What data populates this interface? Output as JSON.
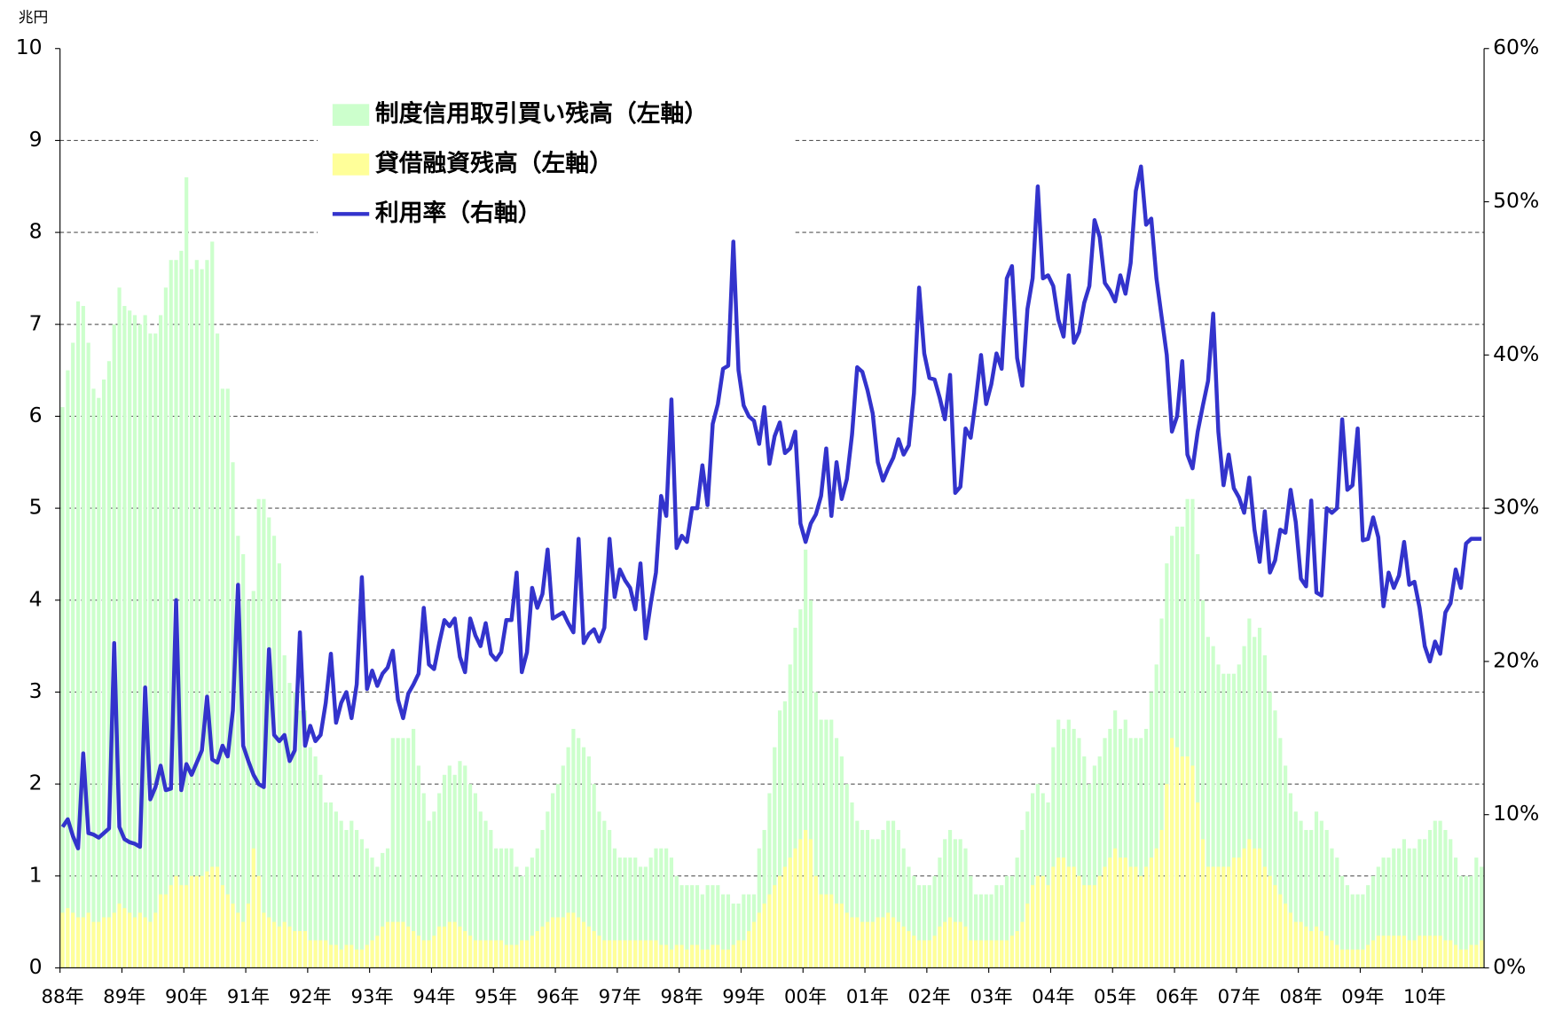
{
  "chart_data": {
    "type": "bar",
    "unit_label": "兆円",
    "categories": [
      "88年",
      null,
      null,
      null,
      null,
      null,
      null,
      null,
      null,
      null,
      null,
      null,
      "89年",
      null,
      null,
      null,
      null,
      null,
      null,
      null,
      null,
      null,
      null,
      null,
      "90年",
      null,
      null,
      null,
      null,
      null,
      null,
      null,
      null,
      null,
      null,
      null,
      "91年",
      null,
      null,
      null,
      null,
      null,
      null,
      null,
      null,
      null,
      null,
      null,
      "92年",
      null,
      null,
      null,
      null,
      null,
      null,
      null,
      null,
      null,
      null,
      null,
      "93年",
      null,
      null,
      null,
      null,
      null,
      null,
      null,
      null,
      null,
      null,
      null,
      "94年",
      null,
      null,
      null,
      null,
      null,
      null,
      null,
      null,
      null,
      null,
      null,
      "95年",
      null,
      null,
      null,
      null,
      null,
      null,
      null,
      null,
      null,
      null,
      null,
      "96年",
      null,
      null,
      null,
      null,
      null,
      null,
      null,
      null,
      null,
      null,
      null,
      "97年",
      null,
      null,
      null,
      null,
      null,
      null,
      null,
      null,
      null,
      null,
      null,
      "98年",
      null,
      null,
      null,
      null,
      null,
      null,
      null,
      null,
      null,
      null,
      null,
      "99年",
      null,
      null,
      null,
      null,
      null,
      null,
      null,
      null,
      null,
      null,
      null,
      "00年",
      null,
      null,
      null,
      null,
      null,
      null,
      null,
      null,
      null,
      null,
      null,
      "01年",
      null,
      null,
      null,
      null,
      null,
      null,
      null,
      null,
      null,
      null,
      null,
      "02年",
      null,
      null,
      null,
      null,
      null,
      null,
      null,
      null,
      null,
      null,
      null,
      "03年",
      null,
      null,
      null,
      null,
      null,
      null,
      null,
      null,
      null,
      null,
      null,
      "04年",
      null,
      null,
      null,
      null,
      null,
      null,
      null,
      null,
      null,
      null,
      null,
      "05年",
      null,
      null,
      null,
      null,
      null,
      null,
      null,
      null,
      null,
      null,
      null,
      "06年",
      null,
      null,
      null,
      null,
      null,
      null,
      null,
      null,
      null,
      null,
      null,
      "07年",
      null,
      null,
      null,
      null,
      null,
      null,
      null,
      null,
      null,
      null,
      null,
      "08年",
      null,
      null,
      null,
      null,
      null,
      null,
      null,
      null,
      null,
      null,
      null,
      "09年",
      null,
      null,
      null,
      null,
      null,
      null,
      null,
      null,
      null,
      null,
      null,
      "10年",
      null,
      null,
      null,
      null,
      null,
      null,
      null,
      null,
      null,
      null,
      null
    ],
    "series": [
      {
        "name": "制度信用取引買い残高（左軸）",
        "type": "bar",
        "color": "#ccffcc",
        "values": [
          6.1,
          6.5,
          6.8,
          7.25,
          7.2,
          6.8,
          6.3,
          6.2,
          6.4,
          6.6,
          7.0,
          7.4,
          7.2,
          7.15,
          7.1,
          7.0,
          7.1,
          6.9,
          6.9,
          7.1,
          7.4,
          7.7,
          7.7,
          7.8,
          8.6,
          7.6,
          7.7,
          7.6,
          7.7,
          7.9,
          6.9,
          6.3,
          6.3,
          5.5,
          4.7,
          4.5,
          4.0,
          4.1,
          5.1,
          5.1,
          4.9,
          4.7,
          4.4,
          3.4,
          3.1,
          3.0,
          2.8,
          2.8,
          2.4,
          2.3,
          2.1,
          1.8,
          1.8,
          1.7,
          1.6,
          1.5,
          1.6,
          1.5,
          1.4,
          1.3,
          1.2,
          1.1,
          1.25,
          1.3,
          2.5,
          2.5,
          2.5,
          2.5,
          2.6,
          2.2,
          1.9,
          1.6,
          1.7,
          1.9,
          2.1,
          2.2,
          2.1,
          2.25,
          2.2,
          2.0,
          1.9,
          1.7,
          1.6,
          1.5,
          1.3,
          1.3,
          1.3,
          1.3,
          1.1,
          1.0,
          1.1,
          1.2,
          1.3,
          1.5,
          1.7,
          1.9,
          2.0,
          2.2,
          2.4,
          2.6,
          2.5,
          2.4,
          2.3,
          2.0,
          1.7,
          1.6,
          1.5,
          1.3,
          1.2,
          1.2,
          1.2,
          1.2,
          1.1,
          1.1,
          1.2,
          1.3,
          1.3,
          1.3,
          1.2,
          1.0,
          0.9,
          0.9,
          0.9,
          0.9,
          0.8,
          0.9,
          0.9,
          0.9,
          0.8,
          0.8,
          0.7,
          0.7,
          0.8,
          0.8,
          0.8,
          1.3,
          1.5,
          1.9,
          2.4,
          2.8,
          2.9,
          3.3,
          3.7,
          3.9,
          4.55,
          4.0,
          3.0,
          2.7,
          2.7,
          2.7,
          2.5,
          2.3,
          2.0,
          1.8,
          1.6,
          1.5,
          1.5,
          1.4,
          1.4,
          1.5,
          1.6,
          1.6,
          1.5,
          1.3,
          1.1,
          1.0,
          0.9,
          0.9,
          0.9,
          1.0,
          1.2,
          1.4,
          1.5,
          1.4,
          1.4,
          1.3,
          1.0,
          0.8,
          0.8,
          0.8,
          0.8,
          0.9,
          0.9,
          1.0,
          1.0,
          1.2,
          1.5,
          1.7,
          1.9,
          2.0,
          1.9,
          1.8,
          2.4,
          2.7,
          2.6,
          2.7,
          2.6,
          2.5,
          2.3,
          2.0,
          2.2,
          2.3,
          2.5,
          2.6,
          2.8,
          2.6,
          2.7,
          2.5,
          2.5,
          2.5,
          2.6,
          3.0,
          3.3,
          3.8,
          4.4,
          4.7,
          4.8,
          4.8,
          5.1,
          5.1,
          4.5,
          4.0,
          3.6,
          3.5,
          3.3,
          3.2,
          3.2,
          3.2,
          3.3,
          3.5,
          3.8,
          3.6,
          3.7,
          3.4,
          3.0,
          2.8,
          2.5,
          2.2,
          1.9,
          1.7,
          1.6,
          1.5,
          1.5,
          1.7,
          1.6,
          1.5,
          1.3,
          1.2,
          1.0,
          0.9,
          0.8,
          0.8,
          0.8,
          0.9,
          1.0,
          1.1,
          1.2,
          1.2,
          1.3,
          1.3,
          1.4,
          1.3,
          1.3,
          1.4,
          1.4,
          1.5,
          1.6,
          1.6,
          1.5,
          1.4,
          1.2,
          1.0,
          1.0,
          1.0,
          1.2,
          1.1
        ]
      },
      {
        "name": "貸借融資残高（左軸）",
        "type": "bar",
        "color": "#ffff99",
        "values": [
          0.6,
          0.65,
          0.6,
          0.55,
          0.55,
          0.6,
          0.5,
          0.5,
          0.55,
          0.55,
          0.6,
          0.7,
          0.65,
          0.6,
          0.55,
          0.6,
          0.55,
          0.5,
          0.6,
          0.8,
          0.8,
          0.9,
          1.0,
          0.9,
          0.9,
          1.0,
          1.0,
          1.0,
          1.05,
          1.1,
          1.1,
          0.9,
          0.8,
          0.7,
          0.6,
          0.5,
          0.7,
          1.3,
          1.0,
          0.6,
          0.55,
          0.5,
          0.45,
          0.5,
          0.45,
          0.4,
          0.4,
          0.4,
          0.3,
          0.3,
          0.3,
          0.3,
          0.25,
          0.25,
          0.2,
          0.25,
          0.25,
          0.2,
          0.2,
          0.25,
          0.3,
          0.35,
          0.45,
          0.5,
          0.5,
          0.5,
          0.5,
          0.45,
          0.4,
          0.35,
          0.3,
          0.3,
          0.35,
          0.45,
          0.45,
          0.5,
          0.5,
          0.45,
          0.4,
          0.35,
          0.3,
          0.3,
          0.3,
          0.3,
          0.3,
          0.3,
          0.25,
          0.25,
          0.25,
          0.3,
          0.3,
          0.35,
          0.4,
          0.45,
          0.5,
          0.55,
          0.55,
          0.55,
          0.6,
          0.6,
          0.55,
          0.5,
          0.45,
          0.4,
          0.35,
          0.3,
          0.3,
          0.3,
          0.3,
          0.3,
          0.3,
          0.3,
          0.3,
          0.3,
          0.3,
          0.3,
          0.25,
          0.25,
          0.2,
          0.25,
          0.25,
          0.2,
          0.25,
          0.25,
          0.2,
          0.2,
          0.25,
          0.25,
          0.2,
          0.2,
          0.25,
          0.3,
          0.3,
          0.4,
          0.5,
          0.6,
          0.7,
          0.8,
          0.9,
          1.0,
          1.1,
          1.2,
          1.3,
          1.4,
          1.5,
          1.4,
          1.0,
          0.8,
          0.8,
          0.8,
          0.7,
          0.7,
          0.6,
          0.55,
          0.55,
          0.5,
          0.5,
          0.5,
          0.55,
          0.55,
          0.6,
          0.55,
          0.5,
          0.45,
          0.4,
          0.35,
          0.3,
          0.3,
          0.3,
          0.35,
          0.45,
          0.5,
          0.55,
          0.5,
          0.5,
          0.45,
          0.3,
          0.3,
          0.3,
          0.3,
          0.3,
          0.3,
          0.3,
          0.3,
          0.35,
          0.4,
          0.5,
          0.7,
          0.9,
          1.0,
          1.0,
          0.9,
          1.1,
          1.2,
          1.2,
          1.1,
          1.1,
          1.0,
          0.9,
          0.9,
          0.9,
          1.0,
          1.1,
          1.2,
          1.3,
          1.2,
          1.2,
          1.1,
          1.1,
          1.0,
          1.1,
          1.2,
          1.3,
          1.5,
          2.0,
          2.5,
          2.4,
          2.3,
          2.3,
          2.2,
          1.8,
          1.4,
          1.1,
          1.1,
          1.1,
          1.1,
          1.1,
          1.2,
          1.2,
          1.3,
          1.4,
          1.3,
          1.3,
          1.1,
          1.0,
          0.9,
          0.8,
          0.7,
          0.6,
          0.5,
          0.5,
          0.45,
          0.4,
          0.45,
          0.4,
          0.35,
          0.3,
          0.25,
          0.2,
          0.2,
          0.2,
          0.2,
          0.2,
          0.25,
          0.3,
          0.35,
          0.35,
          0.35,
          0.35,
          0.35,
          0.35,
          0.3,
          0.3,
          0.35,
          0.35,
          0.35,
          0.35,
          0.35,
          0.3,
          0.3,
          0.25,
          0.2,
          0.2,
          0.25,
          0.25,
          0.3
        ]
      },
      {
        "name": "利用率（右軸）",
        "type": "line",
        "axis": "y2",
        "color": "#3333cc",
        "values": [
          9.2,
          9.7,
          8.6,
          7.8,
          14.0,
          8.8,
          8.7,
          8.5,
          8.8,
          9.1,
          21.2,
          9.2,
          8.4,
          8.2,
          8.1,
          7.9,
          18.3,
          11.0,
          11.8,
          13.2,
          11.6,
          11.7,
          24.0,
          11.6,
          13.3,
          12.6,
          13.4,
          14.2,
          17.7,
          13.6,
          13.4,
          14.5,
          13.8,
          16.8,
          25.0,
          14.5,
          13.5,
          12.6,
          12.0,
          11.8,
          20.8,
          15.2,
          14.8,
          15.2,
          13.5,
          14.2,
          21.9,
          14.5,
          15.8,
          14.8,
          15.2,
          17.3,
          20.5,
          16.0,
          17.3,
          18.0,
          16.3,
          18.5,
          25.5,
          18.2,
          19.4,
          18.4,
          19.2,
          19.6,
          20.7,
          17.5,
          16.3,
          17.9,
          18.5,
          19.2,
          23.5,
          19.8,
          19.5,
          21.2,
          22.7,
          22.3,
          22.8,
          20.3,
          19.3,
          22.8,
          21.7,
          21.0,
          22.5,
          20.5,
          20.1,
          20.6,
          22.7,
          22.7,
          25.8,
          19.3,
          20.6,
          24.8,
          23.5,
          24.4,
          27.3,
          22.8,
          23.0,
          23.2,
          22.5,
          21.9,
          28.0,
          21.2,
          21.8,
          22.1,
          21.3,
          22.2,
          28.0,
          24.2,
          26.0,
          25.3,
          24.8,
          23.4,
          26.4,
          21.5,
          23.8,
          25.8,
          30.8,
          29.5,
          37.1,
          27.4,
          28.2,
          27.8,
          30.0,
          30.0,
          32.8,
          30.2,
          35.5,
          36.8,
          39.1,
          39.3,
          47.4,
          39.0,
          36.7,
          36.0,
          35.7,
          34.2,
          36.6,
          32.9,
          34.7,
          35.6,
          33.6,
          33.9,
          35.0,
          29.0,
          27.8,
          29.0,
          29.6,
          30.8,
          33.9,
          29.5,
          33.0,
          30.6,
          31.9,
          34.8,
          39.2,
          38.9,
          37.7,
          36.2,
          33.0,
          31.8,
          32.6,
          33.3,
          34.5,
          33.5,
          34.1,
          37.5,
          44.4,
          40.1,
          38.5,
          38.4,
          37.2,
          35.8,
          38.7,
          31.0,
          31.4,
          35.2,
          34.6,
          37.1,
          40.0,
          36.8,
          38.1,
          40.1,
          39.1,
          45.0,
          45.8,
          39.8,
          38.0,
          43.0,
          45.0,
          51.0,
          45.0,
          45.2,
          44.5,
          42.3,
          41.2,
          45.2,
          40.8,
          41.5,
          43.4,
          44.5,
          48.8,
          47.7,
          44.7,
          44.2,
          43.5,
          45.2,
          44.0,
          46.0,
          50.7,
          52.3,
          48.5,
          48.9,
          45.0,
          42.5,
          40.0,
          35.0,
          36.0,
          39.6,
          33.5,
          32.6,
          35.0,
          36.7,
          38.3,
          42.7,
          35.0,
          31.5,
          33.5,
          31.3,
          30.7,
          29.7,
          32.0,
          28.6,
          26.5,
          29.8,
          25.8,
          26.6,
          28.6,
          28.4,
          31.2,
          29.1,
          25.4,
          24.9,
          30.5,
          24.5,
          24.3,
          30.0,
          29.7,
          30.0,
          35.8,
          31.2,
          31.5,
          35.2,
          27.9,
          28.0,
          29.4,
          28.1,
          23.6,
          25.8,
          24.8,
          25.6,
          27.8,
          25.0,
          25.2,
          23.5,
          21.0,
          20.0,
          21.3,
          20.5,
          23.2,
          23.8,
          26.0,
          24.8,
          27.7,
          28.0,
          28.0,
          28.0
        ]
      }
    ],
    "ylim": [
      0,
      10
    ],
    "yticks": [
      0,
      1,
      2,
      3,
      4,
      5,
      6,
      7,
      8,
      9,
      10
    ],
    "y2lim": [
      0,
      60
    ],
    "y2ticks": [
      {
        "value": 0,
        "label": "0%"
      },
      {
        "value": 10,
        "label": "10%"
      },
      {
        "value": 20,
        "label": "20%"
      },
      {
        "value": 30,
        "label": "30%"
      },
      {
        "value": 40,
        "label": "40%"
      },
      {
        "value": 50,
        "label": "50%"
      },
      {
        "value": 60,
        "label": "60%"
      }
    ],
    "grid": true,
    "legend": "upper-left"
  }
}
